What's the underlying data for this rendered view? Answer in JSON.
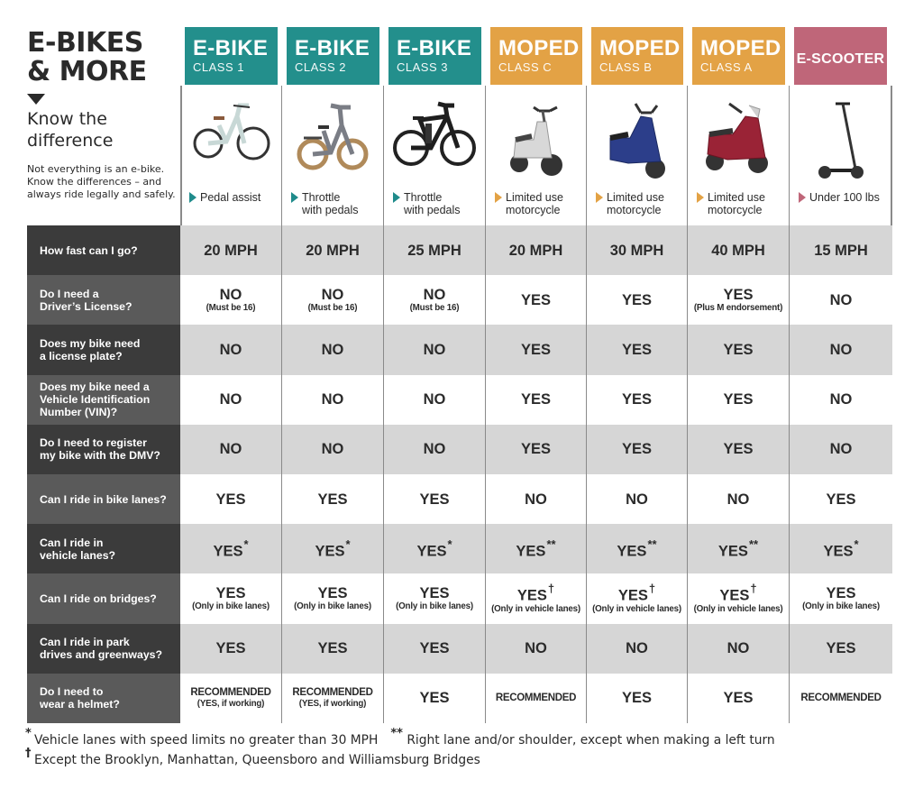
{
  "intro": {
    "title_line1": "E-BIKES",
    "title_line2": "& MORE",
    "arrow_icon": "triangle-down",
    "subtitle_line1": "Know the",
    "subtitle_line2": "difference",
    "description_line1": "Not everything is an e-bike.",
    "description_line2": "Know the differences – and",
    "description_line3": "always ride legally and safely."
  },
  "colors": {
    "ebike": "#238f8c",
    "moped": "#e3a245",
    "scooter": "#bf6679",
    "question_dark": "#3b3b3b",
    "question_mid": "#5a5a5a",
    "row_shade": "#d6d6d6"
  },
  "columns": [
    {
      "title": "E-BIKE",
      "subtitle": "CLASS 1",
      "type": "ebike",
      "image": "step-through-ebike",
      "caption_line1": "Pedal assist",
      "caption_line2": ""
    },
    {
      "title": "E-BIKE",
      "subtitle": "CLASS 2",
      "type": "ebike",
      "image": "folding-fat-tire-ebike",
      "caption_line1": "Throttle",
      "caption_line2": "with pedals"
    },
    {
      "title": "E-BIKE",
      "subtitle": "CLASS 3",
      "type": "ebike",
      "image": "black-commuter-ebike",
      "caption_line1": "Throttle",
      "caption_line2": "with pedals"
    },
    {
      "title": "MOPED",
      "subtitle": "CLASS C",
      "type": "moped",
      "image": "white-moped",
      "caption_line1": "Limited use",
      "caption_line2": "motorcycle"
    },
    {
      "title": "MOPED",
      "subtitle": "CLASS B",
      "type": "moped",
      "image": "blue-moped",
      "caption_line1": "Limited use",
      "caption_line2": "motorcycle"
    },
    {
      "title": "MOPED",
      "subtitle": "CLASS A",
      "type": "moped",
      "image": "red-moped",
      "caption_line1": "Limited use",
      "caption_line2": "motorcycle"
    },
    {
      "title": "E-SCOOTER",
      "subtitle": "",
      "type": "scooter",
      "image": "kick-scooter",
      "caption_line1": "Under 100 lbs",
      "caption_line2": ""
    }
  ],
  "rows": [
    {
      "question_line1": "How fast can I go?",
      "question_line2": "",
      "question_line3": "",
      "cells": [
        {
          "main": "20 MPH",
          "mark": "",
          "note": ""
        },
        {
          "main": "20 MPH",
          "mark": "",
          "note": ""
        },
        {
          "main": "25 MPH",
          "mark": "",
          "note": ""
        },
        {
          "main": "20 MPH",
          "mark": "",
          "note": ""
        },
        {
          "main": "30 MPH",
          "mark": "",
          "note": ""
        },
        {
          "main": "40 MPH",
          "mark": "",
          "note": ""
        },
        {
          "main": "15 MPH",
          "mark": "",
          "note": ""
        }
      ]
    },
    {
      "question_line1": "Do I need a",
      "question_line2": "Driver’s  License?",
      "question_line3": "",
      "cells": [
        {
          "main": "NO",
          "mark": "",
          "note": "(Must be 16)"
        },
        {
          "main": "NO",
          "mark": "",
          "note": "(Must be 16)"
        },
        {
          "main": "NO",
          "mark": "",
          "note": "(Must be 16)"
        },
        {
          "main": "YES",
          "mark": "",
          "note": ""
        },
        {
          "main": "YES",
          "mark": "",
          "note": ""
        },
        {
          "main": "YES",
          "mark": "",
          "note": "(Plus M endorsement)"
        },
        {
          "main": "NO",
          "mark": "",
          "note": ""
        }
      ]
    },
    {
      "question_line1": "Does my bike need",
      "question_line2": "a license plate?",
      "question_line3": "",
      "cells": [
        {
          "main": "NO",
          "mark": "",
          "note": ""
        },
        {
          "main": "NO",
          "mark": "",
          "note": ""
        },
        {
          "main": "NO",
          "mark": "",
          "note": ""
        },
        {
          "main": "YES",
          "mark": "",
          "note": ""
        },
        {
          "main": "YES",
          "mark": "",
          "note": ""
        },
        {
          "main": "YES",
          "mark": "",
          "note": ""
        },
        {
          "main": "NO",
          "mark": "",
          "note": ""
        }
      ]
    },
    {
      "question_line1": "Does my bike need a",
      "question_line2": "Vehicle Identification",
      "question_line3": "Number (VIN)?",
      "cells": [
        {
          "main": "NO",
          "mark": "",
          "note": ""
        },
        {
          "main": "NO",
          "mark": "",
          "note": ""
        },
        {
          "main": "NO",
          "mark": "",
          "note": ""
        },
        {
          "main": "YES",
          "mark": "",
          "note": ""
        },
        {
          "main": "YES",
          "mark": "",
          "note": ""
        },
        {
          "main": "YES",
          "mark": "",
          "note": ""
        },
        {
          "main": "NO",
          "mark": "",
          "note": ""
        }
      ]
    },
    {
      "question_line1": "Do I need to register",
      "question_line2": "my bike with the DMV?",
      "question_line3": "",
      "cells": [
        {
          "main": "NO",
          "mark": "",
          "note": ""
        },
        {
          "main": "NO",
          "mark": "",
          "note": ""
        },
        {
          "main": "NO",
          "mark": "",
          "note": ""
        },
        {
          "main": "YES",
          "mark": "",
          "note": ""
        },
        {
          "main": "YES",
          "mark": "",
          "note": ""
        },
        {
          "main": "YES",
          "mark": "",
          "note": ""
        },
        {
          "main": "NO",
          "mark": "",
          "note": ""
        }
      ]
    },
    {
      "question_line1": "Can I ride in bike lanes?",
      "question_line2": "",
      "question_line3": "",
      "cells": [
        {
          "main": "YES",
          "mark": "",
          "note": ""
        },
        {
          "main": "YES",
          "mark": "",
          "note": ""
        },
        {
          "main": "YES",
          "mark": "",
          "note": ""
        },
        {
          "main": "NO",
          "mark": "",
          "note": ""
        },
        {
          "main": "NO",
          "mark": "",
          "note": ""
        },
        {
          "main": "NO",
          "mark": "",
          "note": ""
        },
        {
          "main": "YES",
          "mark": "",
          "note": ""
        }
      ]
    },
    {
      "question_line1": "Can I ride in",
      "question_line2": "vehicle lanes?",
      "question_line3": "",
      "cells": [
        {
          "main": "YES",
          "mark": "*",
          "note": ""
        },
        {
          "main": "YES",
          "mark": "*",
          "note": ""
        },
        {
          "main": "YES",
          "mark": "*",
          "note": ""
        },
        {
          "main": "YES",
          "mark": "**",
          "note": ""
        },
        {
          "main": "YES",
          "mark": "**",
          "note": ""
        },
        {
          "main": "YES",
          "mark": "**",
          "note": ""
        },
        {
          "main": "YES",
          "mark": "*",
          "note": ""
        }
      ]
    },
    {
      "question_line1": "Can I ride on bridges?",
      "question_line2": "",
      "question_line3": "",
      "cells": [
        {
          "main": "YES",
          "mark": "",
          "note": "(Only in bike lanes)"
        },
        {
          "main": "YES",
          "mark": "",
          "note": "(Only in bike lanes)"
        },
        {
          "main": "YES",
          "mark": "",
          "note": "(Only in bike lanes)"
        },
        {
          "main": "YES",
          "mark": "†",
          "note": "(Only in vehicle lanes)"
        },
        {
          "main": "YES",
          "mark": "†",
          "note": "(Only in vehicle lanes)"
        },
        {
          "main": "YES",
          "mark": "†",
          "note": "(Only in vehicle lanes)"
        },
        {
          "main": "YES",
          "mark": "",
          "note": "(Only in bike lanes)"
        }
      ]
    },
    {
      "question_line1": "Can I ride in park",
      "question_line2": "drives and greenways?",
      "question_line3": "",
      "cells": [
        {
          "main": "YES",
          "mark": "",
          "note": ""
        },
        {
          "main": "YES",
          "mark": "",
          "note": ""
        },
        {
          "main": "YES",
          "mark": "",
          "note": ""
        },
        {
          "main": "NO",
          "mark": "",
          "note": ""
        },
        {
          "main": "NO",
          "mark": "",
          "note": ""
        },
        {
          "main": "NO",
          "mark": "",
          "note": ""
        },
        {
          "main": "YES",
          "mark": "",
          "note": ""
        }
      ]
    },
    {
      "question_line1": "Do I need to",
      "question_line2": "wear a helmet?",
      "question_line3": "",
      "cells": [
        {
          "main": "RECOMMENDED",
          "mark": "",
          "note": "(YES, if working)"
        },
        {
          "main": "RECOMMENDED",
          "mark": "",
          "note": "(YES, if working)"
        },
        {
          "main": "YES",
          "mark": "",
          "note": ""
        },
        {
          "main": "RECOMMENDED",
          "mark": "",
          "note": ""
        },
        {
          "main": "YES",
          "mark": "",
          "note": ""
        },
        {
          "main": "YES",
          "mark": "",
          "note": ""
        },
        {
          "main": "RECOMMENDED",
          "mark": "",
          "note": ""
        }
      ]
    }
  ],
  "footnotes": {
    "f1_mark": "*",
    "f1_text": "Vehicle lanes with speed limits no greater than 30 MPH",
    "f2_mark": "**",
    "f2_text": "Right lane and/or shoulder, except when making a left turn",
    "f3_mark": "†",
    "f3_text": "Except the Brooklyn, Manhattan, Queensboro and Williamsburg Bridges"
  }
}
